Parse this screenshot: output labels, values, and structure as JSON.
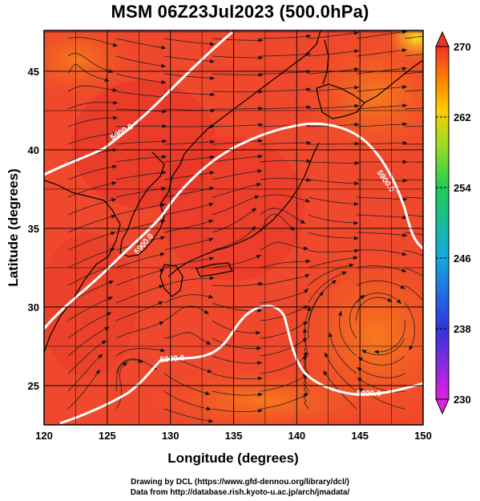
{
  "title": "MSM 06Z23Jul2023 (500.0hPa)",
  "credits": {
    "line1": "Drawing by DCL (https://www.gfd-dennou.org/library/dcl/)",
    "line2": "Data from http://database.rish.kyoto-u.ac.jp/arch/jmadata/"
  },
  "chart_data": {
    "type": "heatmap",
    "xlabel": "Longitude (degrees)",
    "ylabel": "Latitude  (degrees)",
    "xlim": [
      120,
      150
    ],
    "ylim": [
      22.5,
      47.6
    ],
    "xticks": [
      120,
      125,
      130,
      135,
      140,
      145,
      150
    ],
    "yticks": [
      25,
      30,
      35,
      40,
      45
    ],
    "grid": true,
    "colorbar": {
      "min": 230,
      "max": 270,
      "ticks": [
        230,
        238,
        246,
        254,
        262,
        270
      ],
      "colors": [
        "#cc22cc",
        "#3333dd",
        "#11aadd",
        "#22cc55",
        "#99dd22",
        "#ffcc00",
        "#ff8800",
        "#ee3322"
      ]
    },
    "contours": [
      {
        "label": "5900.0"
      },
      {
        "label": "5900.0"
      },
      {
        "label": "5900.0"
      },
      {
        "label": "5900.0"
      },
      {
        "label": "5900.0"
      }
    ]
  },
  "colors": {
    "background": "#ffffff",
    "field_base": "#f0402a",
    "contour": "#ffffff"
  }
}
